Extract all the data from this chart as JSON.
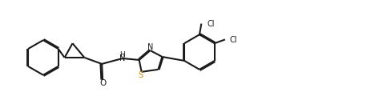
{
  "bg_color": "#ffffff",
  "line_color": "#1a1a1a",
  "bond_lw": 1.5,
  "label_S_color": "#cc8800",
  "label_N_color": "#1a1a1a",
  "label_O_color": "#1a1a1a",
  "label_Cl_color": "#1a1a1a",
  "figsize": [
    4.83,
    1.4
  ],
  "dpi": 100,
  "xlim": [
    0.0,
    4.83
  ],
  "ylim": [
    0.0,
    1.4
  ]
}
